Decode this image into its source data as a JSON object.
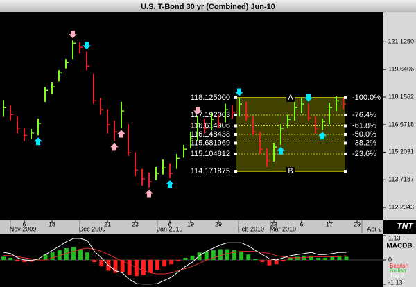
{
  "chart_data": [
    {
      "type": "ohlc",
      "title": "U.S. T-Bond 30 yr (Combined) Jun-10",
      "up_color": "#80ff20",
      "down_color": "#e8202a",
      "close": [
        117.59,
        117.22,
        116.48,
        116.1,
        116.22,
        116.74,
        118.52,
        118.71,
        119.45,
        120.01,
        121.05,
        120.83,
        119.82,
        117.96,
        117.48,
        116.66,
        116.29,
        117.41,
        115.17,
        114.24,
        113.76,
        113.61,
        114.06,
        114.35,
        114.06,
        114.87,
        115.36,
        115.92,
        116.74,
        116.48,
        116.96,
        116.74,
        117.48,
        117.33,
        117.78,
        117.11,
        116.29,
        115.36,
        114.73,
        115.47,
        116.48,
        116.96,
        117.59,
        117.78,
        117.03,
        116.48,
        116.85,
        117.59,
        117.96,
        117.78
      ],
      "high": [
        118.0,
        117.7,
        117.1,
        116.5,
        116.45,
        117.0,
        118.7,
        118.95,
        119.6,
        120.2,
        121.2,
        121.1,
        120.6,
        119.4,
        118.1,
        117.5,
        116.9,
        117.9,
        116.7,
        115.2,
        114.3,
        114.1,
        114.4,
        114.8,
        114.6,
        115.1,
        115.6,
        116.3,
        117.1,
        117.0,
        117.3,
        117.2,
        117.8,
        117.7,
        118.1,
        117.9,
        117.1,
        116.3,
        115.4,
        115.7,
        116.7,
        117.2,
        117.9,
        118.12,
        117.8,
        117.1,
        117.0,
        117.85,
        118.2,
        118.1
      ],
      "low": [
        117.1,
        116.9,
        116.2,
        115.8,
        115.9,
        116.1,
        117.9,
        118.3,
        119.0,
        119.7,
        120.2,
        120.5,
        119.6,
        117.8,
        117.2,
        116.2,
        115.8,
        116.5,
        115.0,
        113.9,
        113.4,
        113.3,
        113.7,
        114.0,
        113.8,
        114.3,
        114.9,
        115.4,
        115.8,
        116.2,
        116.4,
        116.5,
        116.8,
        117.0,
        117.1,
        116.9,
        116.1,
        115.1,
        114.4,
        114.7,
        115.6,
        116.5,
        116.9,
        117.3,
        116.9,
        116.2,
        116.4,
        116.7,
        117.4,
        117.5
      ],
      "xlim": [
        -0.5,
        54.8
      ],
      "xticks": [
        {
          "value": 3,
          "label": "6"
        },
        {
          "value": 7,
          "label": "18"
        },
        {
          "value": 15,
          "label": "21"
        },
        {
          "value": 19,
          "label": "23"
        },
        {
          "value": 24,
          "label": "6"
        },
        {
          "value": 27,
          "label": "19"
        },
        {
          "value": 31,
          "label": "29"
        },
        {
          "value": 39,
          "label": "23"
        },
        {
          "value": 43,
          "label": "6"
        },
        {
          "value": 47,
          "label": "17"
        },
        {
          "value": 51,
          "label": "29"
        }
      ],
      "xticks_months": [
        {
          "value": 2.8,
          "label": "Nov 2009"
        },
        {
          "value": 12.8,
          "label": "Dec 2009"
        },
        {
          "value": 24,
          "label": "Jan 2010"
        },
        {
          "value": 35.7,
          "label": "Feb 2010"
        },
        {
          "value": 40.3,
          "label": "Mar 2010"
        },
        {
          "value": 53.5,
          "label": "Apr 2"
        }
      ],
      "ylim": [
        111.53,
        122.7
      ],
      "yticks": [
        {
          "value": 121.125,
          "label": "121.1250"
        },
        {
          "value": 119.6406,
          "label": "119.6406"
        },
        {
          "value": 118.1562,
          "label": "118.1562"
        },
        {
          "value": 116.6718,
          "label": "116.6718"
        },
        {
          "value": 115.2031,
          "label": "115.2031"
        },
        {
          "value": 113.7187,
          "label": "113.7187"
        },
        {
          "value": 112.2343,
          "label": "112.2343"
        }
      ],
      "fib": {
        "start": 33.5,
        "end": 49.3,
        "color": "#e8e800",
        "fill": "rgba(120,120,0,0.55)",
        "top_label": "A",
        "bottom_label": "B",
        "levels": [
          118.125,
          117.192063,
          116.614906,
          116.148438,
          115.681969,
          115.104812,
          114.171875
        ],
        "level_labels": [
          "118.125000",
          "117.192063",
          "116.614906",
          "116.148438",
          "115.681969",
          "115.104812",
          "114.171875"
        ],
        "percents": [
          -100,
          -76.4,
          -61.8,
          -50,
          -38.2,
          -23.6,
          null
        ],
        "percent_labels": [
          "-100.0%",
          "-76.4%",
          "-61.8%",
          "-50.0%",
          "-38.2%",
          "-23.6%",
          null
        ]
      },
      "signals": [
        {
          "bar": 5,
          "dir": "up",
          "color": "#00e5ff"
        },
        {
          "bar": 10,
          "dir": "down",
          "color": "#ffb0c0"
        },
        {
          "bar": 12,
          "dir": "down",
          "color": "#00e5ff"
        },
        {
          "bar": 16,
          "dir": "up",
          "color": "#ffb0c0"
        },
        {
          "bar": 17,
          "dir": "up",
          "color": "#ffb0c0"
        },
        {
          "bar": 21,
          "dir": "up",
          "color": "#ffb0c0"
        },
        {
          "bar": 24,
          "dir": "up",
          "color": "#00e5ff"
        },
        {
          "bar": 28,
          "dir": "down",
          "color": "#ffb0c0"
        },
        {
          "bar": 34,
          "dir": "down",
          "color": "#00e5ff"
        },
        {
          "bar": 40,
          "dir": "up",
          "color": "#00e5ff"
        },
        {
          "bar": 44,
          "dir": "down",
          "color": "#00e5ff"
        },
        {
          "bar": 46,
          "dir": "up",
          "color": "#00e5ff"
        }
      ],
      "logo": "TNT"
    },
    {
      "type": "macd",
      "title": "MACDB",
      "ylim": [
        -1.13,
        1.13
      ],
      "yticks": [
        1.13,
        0,
        -1.13
      ],
      "histogram": [
        0.15,
        0.1,
        -0.05,
        -0.1,
        -0.08,
        0.05,
        0.25,
        0.35,
        0.45,
        0.55,
        0.6,
        0.5,
        0.35,
        -0.1,
        -0.3,
        -0.5,
        -0.6,
        -0.55,
        -0.7,
        -0.75,
        -0.7,
        -0.6,
        -0.45,
        -0.3,
        -0.2,
        -0.05,
        0.1,
        0.2,
        0.35,
        0.4,
        0.45,
        0.5,
        0.5,
        0.45,
        0.4,
        0.25,
        0.05,
        -0.1,
        -0.25,
        -0.2,
        -0.05,
        0.1,
        0.15,
        0.2,
        0.2,
        0.1,
        0.1,
        0.15,
        0.2,
        0.15
      ],
      "macd": {
        "color": "#ffffff",
        "values": [
          0.35,
          0.3,
          0.1,
          0.0,
          -0.03,
          0.05,
          0.25,
          0.45,
          0.65,
          0.85,
          1.0,
          1.0,
          0.9,
          0.4,
          0.1,
          -0.25,
          -0.5,
          -0.6,
          -0.9,
          -1.1,
          -1.12,
          -1.12,
          -1.1,
          -0.95,
          -0.8,
          -0.55,
          -0.3,
          -0.1,
          0.2,
          0.4,
          0.55,
          0.7,
          0.8,
          0.8,
          0.8,
          0.65,
          0.45,
          0.25,
          0.05,
          0.0,
          0.1,
          0.2,
          0.25,
          0.3,
          0.35,
          0.25,
          0.25,
          0.3,
          0.35,
          0.35
        ]
      },
      "signal": {
        "color": "#e03030",
        "values": [
          0.2,
          0.2,
          0.15,
          0.1,
          0.05,
          0.0,
          0.0,
          0.1,
          0.2,
          0.3,
          0.4,
          0.5,
          0.55,
          0.5,
          0.4,
          0.25,
          0.1,
          -0.05,
          -0.2,
          -0.35,
          -0.5,
          -0.6,
          -0.65,
          -0.65,
          -0.6,
          -0.5,
          -0.4,
          -0.3,
          -0.15,
          0.0,
          0.1,
          0.2,
          0.3,
          0.35,
          0.4,
          0.4,
          0.4,
          0.35,
          0.3,
          0.2,
          0.15,
          0.1,
          0.1,
          0.1,
          0.15,
          0.15,
          0.15,
          0.15,
          0.15,
          0.2
        ]
      },
      "legend": [
        {
          "name": "Bearish",
          "color": "#ff2020"
        },
        {
          "name": "Bullish",
          "color": "#20c020"
        },
        {
          "name": "Trig 9",
          "color": "#ffffff"
        }
      ]
    }
  ]
}
